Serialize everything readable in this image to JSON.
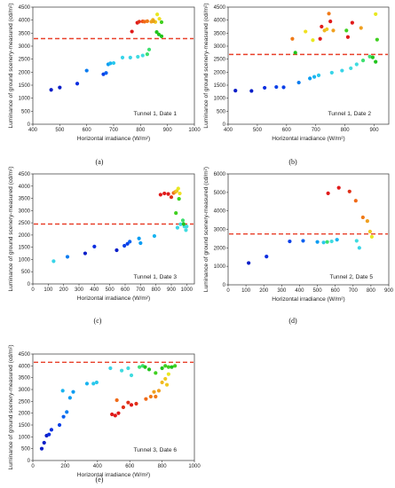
{
  "chart_data": [
    {
      "type": "scatter",
      "panel_label": "(a)",
      "annotation": "Tunnel 1, Date 1",
      "xlabel": "Horizontal irradiance (W/m²)",
      "ylabel": "Luminance of ground scenery-measured (cd/m²)",
      "xlim": [
        400,
        1000
      ],
      "ylim": [
        0,
        4500
      ],
      "xticks": [
        400,
        500,
        600,
        700,
        800,
        900,
        1000
      ],
      "yticks": [
        0,
        500,
        1000,
        1500,
        2000,
        2500,
        3000,
        3500,
        4000,
        4500
      ],
      "threshold": 3290,
      "threshold_color": "#e8402a",
      "points": [
        {
          "x": 468,
          "y": 1320,
          "color": "#0a1ec8"
        },
        {
          "x": 500,
          "y": 1410,
          "color": "#0a1ec8"
        },
        {
          "x": 565,
          "y": 1560,
          "color": "#0a2ee0"
        },
        {
          "x": 600,
          "y": 2060,
          "color": "#0a7cf0"
        },
        {
          "x": 662,
          "y": 1920,
          "color": "#0a40e8"
        },
        {
          "x": 672,
          "y": 1970,
          "color": "#0a60f0"
        },
        {
          "x": 680,
          "y": 2300,
          "color": "#0a9cf2"
        },
        {
          "x": 688,
          "y": 2340,
          "color": "#19b4f0"
        },
        {
          "x": 700,
          "y": 2350,
          "color": "#2ac8ec"
        },
        {
          "x": 733,
          "y": 2560,
          "color": "#38d4e8"
        },
        {
          "x": 762,
          "y": 2560,
          "color": "#38d4e8"
        },
        {
          "x": 790,
          "y": 2590,
          "color": "#40dce0"
        },
        {
          "x": 808,
          "y": 2640,
          "color": "#40dce0"
        },
        {
          "x": 825,
          "y": 2690,
          "color": "#3ee070"
        },
        {
          "x": 832,
          "y": 2870,
          "color": "#3ee070"
        },
        {
          "x": 860,
          "y": 3540,
          "color": "#20c41c"
        },
        {
          "x": 868,
          "y": 3450,
          "color": "#20c41c"
        },
        {
          "x": 878,
          "y": 3920,
          "color": "#40d020"
        },
        {
          "x": 878,
          "y": 3380,
          "color": "#20c41c"
        },
        {
          "x": 768,
          "y": 3560,
          "color": "#e01a1a"
        },
        {
          "x": 788,
          "y": 3900,
          "color": "#e01a1a"
        },
        {
          "x": 795,
          "y": 3940,
          "color": "#e03018"
        },
        {
          "x": 808,
          "y": 3950,
          "color": "#f05018"
        },
        {
          "x": 815,
          "y": 3940,
          "color": "#f06a18"
        },
        {
          "x": 825,
          "y": 3960,
          "color": "#f07a18"
        },
        {
          "x": 840,
          "y": 3940,
          "color": "#f0a020"
        },
        {
          "x": 846,
          "y": 4010,
          "color": "#f0b820"
        },
        {
          "x": 855,
          "y": 3930,
          "color": "#f0c820"
        },
        {
          "x": 862,
          "y": 4220,
          "color": "#e8e820"
        },
        {
          "x": 870,
          "y": 4050,
          "color": "#f0e020"
        },
        {
          "x": 848,
          "y": 3960,
          "color": "#e8a018"
        }
      ]
    },
    {
      "type": "scatter",
      "panel_label": "(b)",
      "annotation": "Tunnel 1, Date 2",
      "xlabel": "Horizontal irradiance (W/m²)",
      "ylabel": "Luminance of ground scenery-measured (cd/m²)",
      "xlim": [
        400,
        950
      ],
      "ylim": [
        0,
        4500
      ],
      "xticks": [
        400,
        500,
        600,
        700,
        800,
        900
      ],
      "yticks": [
        0,
        500,
        1000,
        1500,
        2000,
        2500,
        3000,
        3500,
        4000,
        4500
      ],
      "threshold": 2680,
      "threshold_color": "#e8402a",
      "points": [
        {
          "x": 425,
          "y": 1290,
          "color": "#0a1ec8"
        },
        {
          "x": 480,
          "y": 1280,
          "color": "#0a1ec8"
        },
        {
          "x": 525,
          "y": 1400,
          "color": "#0a2ee0"
        },
        {
          "x": 565,
          "y": 1430,
          "color": "#0a40e8"
        },
        {
          "x": 590,
          "y": 1420,
          "color": "#0a40e8"
        },
        {
          "x": 642,
          "y": 1600,
          "color": "#0a7cf0"
        },
        {
          "x": 680,
          "y": 1760,
          "color": "#0a9cf2"
        },
        {
          "x": 695,
          "y": 1820,
          "color": "#19b4f0"
        },
        {
          "x": 710,
          "y": 1880,
          "color": "#2ac8ec"
        },
        {
          "x": 755,
          "y": 1980,
          "color": "#38d4e8"
        },
        {
          "x": 790,
          "y": 2060,
          "color": "#38d4e8"
        },
        {
          "x": 820,
          "y": 2150,
          "color": "#40dce0"
        },
        {
          "x": 840,
          "y": 2300,
          "color": "#40dce0"
        },
        {
          "x": 862,
          "y": 2450,
          "color": "#3ee070"
        },
        {
          "x": 885,
          "y": 2600,
          "color": "#3ee070"
        },
        {
          "x": 905,
          "y": 2400,
          "color": "#20c41c"
        },
        {
          "x": 910,
          "y": 3250,
          "color": "#40d020"
        },
        {
          "x": 895,
          "y": 2570,
          "color": "#20c41c"
        },
        {
          "x": 630,
          "y": 2750,
          "color": "#20c41c"
        },
        {
          "x": 620,
          "y": 3280,
          "color": "#f07a18"
        },
        {
          "x": 665,
          "y": 3560,
          "color": "#f0e020"
        },
        {
          "x": 690,
          "y": 3230,
          "color": "#e8e820"
        },
        {
          "x": 715,
          "y": 3280,
          "color": "#e01a1a"
        },
        {
          "x": 720,
          "y": 3750,
          "color": "#e01a1a"
        },
        {
          "x": 730,
          "y": 3600,
          "color": "#f0b820"
        },
        {
          "x": 738,
          "y": 3650,
          "color": "#f0c820"
        },
        {
          "x": 745,
          "y": 4250,
          "color": "#f07a18"
        },
        {
          "x": 750,
          "y": 3950,
          "color": "#e01a1a"
        },
        {
          "x": 760,
          "y": 3600,
          "color": "#f0a020"
        },
        {
          "x": 805,
          "y": 3600,
          "color": "#40d020"
        },
        {
          "x": 810,
          "y": 3350,
          "color": "#e01a1a"
        },
        {
          "x": 825,
          "y": 3900,
          "color": "#e01a1a"
        },
        {
          "x": 855,
          "y": 3700,
          "color": "#f0a020"
        },
        {
          "x": 905,
          "y": 4230,
          "color": "#e8e820"
        }
      ]
    },
    {
      "type": "scatter",
      "panel_label": "(c)",
      "annotation": "Tunnel 1, Date 3",
      "xlabel": "Horizontal irradiance (W/m²)",
      "ylabel": "Luminance of ground scenery-measured (cd/m²)",
      "xlim": [
        0,
        1050
      ],
      "ylim": [
        0,
        4500
      ],
      "xticks": [
        0,
        100,
        200,
        300,
        400,
        500,
        600,
        700,
        800,
        900,
        1000
      ],
      "yticks": [
        0,
        500,
        1000,
        1500,
        2000,
        2500,
        3000,
        3500,
        4000,
        4500
      ],
      "threshold": 2450,
      "threshold_color": "#e8402a",
      "points": [
        {
          "x": 135,
          "y": 930,
          "color": "#38d4e8"
        },
        {
          "x": 225,
          "y": 1110,
          "color": "#0a7cf0"
        },
        {
          "x": 340,
          "y": 1250,
          "color": "#0a1ec8"
        },
        {
          "x": 400,
          "y": 1530,
          "color": "#0a2ee0"
        },
        {
          "x": 545,
          "y": 1380,
          "color": "#0a1ec8"
        },
        {
          "x": 595,
          "y": 1560,
          "color": "#0a40e8"
        },
        {
          "x": 615,
          "y": 1640,
          "color": "#0a40e8"
        },
        {
          "x": 630,
          "y": 1730,
          "color": "#0a60f0"
        },
        {
          "x": 690,
          "y": 1860,
          "color": "#0a9cf2"
        },
        {
          "x": 700,
          "y": 1670,
          "color": "#0a9cf2"
        },
        {
          "x": 790,
          "y": 1960,
          "color": "#19b4f0"
        },
        {
          "x": 940,
          "y": 2300,
          "color": "#38d4e8"
        },
        {
          "x": 960,
          "y": 2440,
          "color": "#40dce0"
        },
        {
          "x": 975,
          "y": 2600,
          "color": "#3ee070"
        },
        {
          "x": 985,
          "y": 2350,
          "color": "#40dce0"
        },
        {
          "x": 995,
          "y": 2200,
          "color": "#40dce0"
        },
        {
          "x": 1000,
          "y": 2350,
          "color": "#40dce0"
        },
        {
          "x": 980,
          "y": 2450,
          "color": "#20c41c"
        },
        {
          "x": 950,
          "y": 3480,
          "color": "#40d020"
        },
        {
          "x": 930,
          "y": 2900,
          "color": "#40d020"
        },
        {
          "x": 830,
          "y": 3650,
          "color": "#e01a1a"
        },
        {
          "x": 855,
          "y": 3700,
          "color": "#e01a1a"
        },
        {
          "x": 880,
          "y": 3680,
          "color": "#e01a1a"
        },
        {
          "x": 900,
          "y": 3550,
          "color": "#e03018"
        },
        {
          "x": 915,
          "y": 3720,
          "color": "#f06a18"
        },
        {
          "x": 925,
          "y": 3760,
          "color": "#f0a020"
        },
        {
          "x": 935,
          "y": 3800,
          "color": "#f0c820"
        },
        {
          "x": 945,
          "y": 3900,
          "color": "#e8e820"
        },
        {
          "x": 955,
          "y": 3700,
          "color": "#f0e020"
        }
      ]
    },
    {
      "type": "scatter",
      "panel_label": "(d)",
      "annotation": "Tunnel 2, Date 5",
      "xlabel": "Horizontal irradiance (W/m²)",
      "ylabel": "Luminance of ground scenery-measured (cd/m²)",
      "xlim": [
        0,
        900
      ],
      "ylim": [
        0,
        6000
      ],
      "xticks": [
        0,
        100,
        200,
        300,
        400,
        500,
        600,
        700,
        800,
        900
      ],
      "yticks": [
        0,
        1000,
        2000,
        3000,
        4000,
        5000,
        6000
      ],
      "threshold": 2750,
      "threshold_color": "#e8402a",
      "points": [
        {
          "x": 115,
          "y": 1180,
          "color": "#0a1ec8"
        },
        {
          "x": 215,
          "y": 1530,
          "color": "#0a2ee0"
        },
        {
          "x": 345,
          "y": 2350,
          "color": "#0a40e8"
        },
        {
          "x": 420,
          "y": 2380,
          "color": "#0a60f0"
        },
        {
          "x": 500,
          "y": 2320,
          "color": "#0a9cf2"
        },
        {
          "x": 535,
          "y": 2290,
          "color": "#2ac8ec"
        },
        {
          "x": 555,
          "y": 2320,
          "color": "#3ee070"
        },
        {
          "x": 580,
          "y": 2350,
          "color": "#40dce0"
        },
        {
          "x": 610,
          "y": 2440,
          "color": "#19b4f0"
        },
        {
          "x": 720,
          "y": 2380,
          "color": "#40dce0"
        },
        {
          "x": 735,
          "y": 2000,
          "color": "#38d4e8"
        },
        {
          "x": 560,
          "y": 4950,
          "color": "#e01a1a"
        },
        {
          "x": 620,
          "y": 5250,
          "color": "#e01a1a"
        },
        {
          "x": 680,
          "y": 5050,
          "color": "#e03018"
        },
        {
          "x": 715,
          "y": 4550,
          "color": "#f06a18"
        },
        {
          "x": 755,
          "y": 3650,
          "color": "#f07a18"
        },
        {
          "x": 780,
          "y": 3450,
          "color": "#f0a020"
        },
        {
          "x": 795,
          "y": 2880,
          "color": "#f0c820"
        },
        {
          "x": 805,
          "y": 2600,
          "color": "#e8e820"
        }
      ]
    },
    {
      "type": "scatter",
      "panel_label": "(e)",
      "annotation": "Tunnel 3, Date 6",
      "xlabel": "Horizontal irradiance (W/m²)",
      "ylabel": "Luminance of ground scenery-measured (cd/m²)",
      "xlim": [
        0,
        1000
      ],
      "ylim": [
        0,
        4500
      ],
      "xticks": [
        0,
        200,
        400,
        600,
        800,
        1000
      ],
      "yticks": [
        0,
        500,
        1000,
        1500,
        2000,
        2500,
        3000,
        3500,
        4000,
        4500
      ],
      "threshold": 4150,
      "threshold_color": "#e8402a",
      "points": [
        {
          "x": 55,
          "y": 500,
          "color": "#0a1ec8"
        },
        {
          "x": 70,
          "y": 750,
          "color": "#0a1ec8"
        },
        {
          "x": 85,
          "y": 1050,
          "color": "#0a1ec8"
        },
        {
          "x": 100,
          "y": 1100,
          "color": "#0a2ee0"
        },
        {
          "x": 115,
          "y": 1300,
          "color": "#0a2ee0"
        },
        {
          "x": 165,
          "y": 1500,
          "color": "#0a40e8"
        },
        {
          "x": 190,
          "y": 1850,
          "color": "#0a60f0"
        },
        {
          "x": 210,
          "y": 2050,
          "color": "#0a7cf0"
        },
        {
          "x": 230,
          "y": 2650,
          "color": "#0a9cf2"
        },
        {
          "x": 250,
          "y": 2900,
          "color": "#0a9cf2"
        },
        {
          "x": 185,
          "y": 2950,
          "color": "#19b4f0"
        },
        {
          "x": 335,
          "y": 3250,
          "color": "#19b4f0"
        },
        {
          "x": 375,
          "y": 3250,
          "color": "#2ac8ec"
        },
        {
          "x": 395,
          "y": 3300,
          "color": "#2ac8ec"
        },
        {
          "x": 480,
          "y": 3900,
          "color": "#38d4e8"
        },
        {
          "x": 550,
          "y": 3800,
          "color": "#40dce0"
        },
        {
          "x": 590,
          "y": 3900,
          "color": "#40dce0"
        },
        {
          "x": 610,
          "y": 3600,
          "color": "#40dce0"
        },
        {
          "x": 660,
          "y": 3950,
          "color": "#3ee070"
        },
        {
          "x": 680,
          "y": 4000,
          "color": "#3ee070"
        },
        {
          "x": 695,
          "y": 3950,
          "color": "#20c41c"
        },
        {
          "x": 720,
          "y": 3850,
          "color": "#20c41c"
        },
        {
          "x": 760,
          "y": 3700,
          "color": "#40d020"
        },
        {
          "x": 800,
          "y": 3900,
          "color": "#20c41c"
        },
        {
          "x": 820,
          "y": 4000,
          "color": "#40d020"
        },
        {
          "x": 840,
          "y": 3950,
          "color": "#40d020"
        },
        {
          "x": 860,
          "y": 3950,
          "color": "#20c41c"
        },
        {
          "x": 880,
          "y": 4000,
          "color": "#40d020"
        },
        {
          "x": 490,
          "y": 1950,
          "color": "#e01a1a"
        },
        {
          "x": 510,
          "y": 1900,
          "color": "#e01a1a"
        },
        {
          "x": 530,
          "y": 2000,
          "color": "#e01a1a"
        },
        {
          "x": 560,
          "y": 2250,
          "color": "#e03018"
        },
        {
          "x": 590,
          "y": 2450,
          "color": "#e03018"
        },
        {
          "x": 610,
          "y": 2350,
          "color": "#e01a1a"
        },
        {
          "x": 640,
          "y": 2400,
          "color": "#e03018"
        },
        {
          "x": 520,
          "y": 2550,
          "color": "#f06a18"
        },
        {
          "x": 700,
          "y": 2600,
          "color": "#f06a18"
        },
        {
          "x": 730,
          "y": 2700,
          "color": "#f07a18"
        },
        {
          "x": 750,
          "y": 2900,
          "color": "#f0a020"
        },
        {
          "x": 760,
          "y": 2700,
          "color": "#f07a18"
        },
        {
          "x": 780,
          "y": 2950,
          "color": "#f0a020"
        },
        {
          "x": 800,
          "y": 3300,
          "color": "#f0b820"
        },
        {
          "x": 820,
          "y": 3450,
          "color": "#f0c820"
        },
        {
          "x": 840,
          "y": 3650,
          "color": "#e8e820"
        },
        {
          "x": 830,
          "y": 3200,
          "color": "#f0c820"
        }
      ]
    }
  ]
}
